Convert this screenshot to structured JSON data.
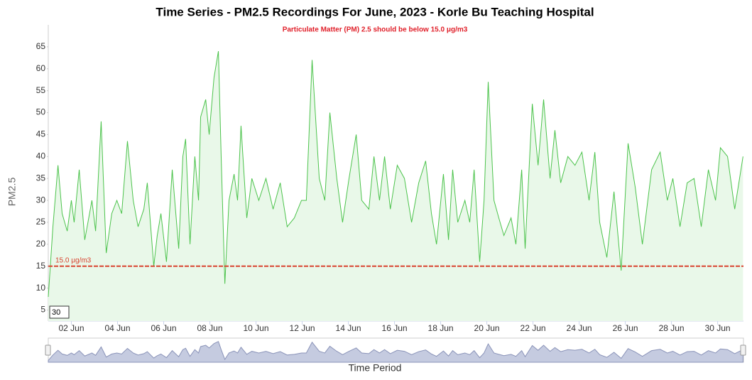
{
  "chart_data": {
    "type": "area",
    "title": "Time Series - PM2.5 Recordings For June, 2023 - Korle Bu Teaching Hospital",
    "subtitle": "Particulate Matter (PM) 2.5 should be below 15.0 μg/m3",
    "y_label": "PM2.5",
    "x_label": "Time Period",
    "threshold": {
      "value": 15,
      "label": "15.0 μg/m3",
      "color": "#d9432f"
    },
    "series": [
      {
        "name": "PM2.5",
        "color": "#4cc34c",
        "fill": "#e9f8e9",
        "x": [
          1.0,
          1.2,
          1.42,
          1.6,
          1.82,
          2.0,
          2.12,
          2.34,
          2.58,
          2.89,
          3.05,
          3.29,
          3.51,
          3.75,
          3.97,
          4.18,
          4.43,
          4.68,
          4.89,
          5.14,
          5.29,
          5.57,
          5.72,
          5.88,
          6.12,
          6.37,
          6.65,
          6.83,
          6.95,
          7.14,
          7.35,
          7.51,
          7.6,
          7.82,
          7.97,
          8.18,
          8.37,
          8.49,
          8.65,
          8.83,
          9.05,
          9.2,
          9.35,
          9.6,
          9.82,
          10.12,
          10.43,
          10.74,
          11.05,
          11.35,
          11.66,
          11.97,
          12.18,
          12.43,
          12.74,
          12.98,
          13.2,
          13.5,
          13.75,
          14.03,
          14.34,
          14.58,
          14.89,
          15.11,
          15.35,
          15.57,
          15.82,
          16.12,
          16.43,
          16.74,
          17.05,
          17.35,
          17.6,
          17.82,
          18.12,
          18.34,
          18.52,
          18.74,
          19.05,
          19.26,
          19.45,
          19.69,
          19.88,
          20.06,
          20.31,
          20.52,
          20.74,
          21.05,
          21.26,
          21.51,
          21.66,
          21.97,
          22.22,
          22.46,
          22.74,
          22.95,
          23.2,
          23.51,
          23.82,
          24.12,
          24.43,
          24.68,
          24.89,
          25.2,
          25.51,
          25.82,
          26.12,
          26.43,
          26.74,
          27.14,
          27.51,
          27.82,
          28.06,
          28.37,
          28.68,
          28.98,
          29.29,
          29.6,
          29.91,
          30.12,
          30.43,
          30.74,
          31.1
        ],
        "values": [
          8,
          24,
          38,
          27,
          23,
          30,
          25,
          37,
          21,
          30,
          23,
          48,
          18,
          27,
          30,
          27,
          43.5,
          30,
          24,
          28,
          34,
          15,
          22,
          27,
          16,
          37,
          19,
          40,
          44,
          20,
          40,
          30,
          49,
          53,
          45,
          58,
          64,
          40,
          11,
          30,
          36,
          30,
          47,
          26,
          35,
          30,
          35,
          28,
          34,
          24,
          26,
          30,
          30,
          62,
          35,
          30,
          50,
          35,
          25,
          35,
          45,
          30,
          28,
          40,
          30,
          40,
          28,
          38,
          35,
          25,
          34,
          39,
          27,
          20,
          36,
          21,
          37,
          25,
          30,
          25,
          37,
          16,
          30,
          57,
          30,
          26,
          22,
          26,
          20,
          37,
          19,
          52,
          38,
          53,
          35,
          46,
          34,
          40,
          38,
          41,
          30,
          41,
          25,
          17,
          32,
          14,
          43,
          33,
          20,
          37,
          41,
          30,
          35,
          24,
          34,
          35,
          24,
          37,
          30,
          42,
          40,
          28,
          40
        ]
      }
    ],
    "xlim": [
      1,
      31.12
    ],
    "ylim": [
      2.5,
      70
    ],
    "yticks": [
      5,
      10,
      15,
      20,
      25,
      30,
      35,
      40,
      45,
      50,
      55,
      60,
      65
    ],
    "xticks": [
      {
        "value": 2,
        "label": "02 Jun"
      },
      {
        "value": 4,
        "label": "04 Jun"
      },
      {
        "value": 6,
        "label": "06 Jun"
      },
      {
        "value": 8,
        "label": "08 Jun"
      },
      {
        "value": 10,
        "label": "10 Jun"
      },
      {
        "value": 12,
        "label": "12 Jun"
      },
      {
        "value": 14,
        "label": "14 Jun"
      },
      {
        "value": 16,
        "label": "16 Jun"
      },
      {
        "value": 18,
        "label": "18 Jun"
      },
      {
        "value": 20,
        "label": "20 Jun"
      },
      {
        "value": 22,
        "label": "22 Jun"
      },
      {
        "value": 24,
        "label": "24 Jun"
      },
      {
        "value": 26,
        "label": "26 Jun"
      },
      {
        "value": 28,
        "label": "28 Jun"
      },
      {
        "value": 30,
        "label": "30 Jun"
      }
    ],
    "grid": false
  },
  "zoom_input": "30"
}
